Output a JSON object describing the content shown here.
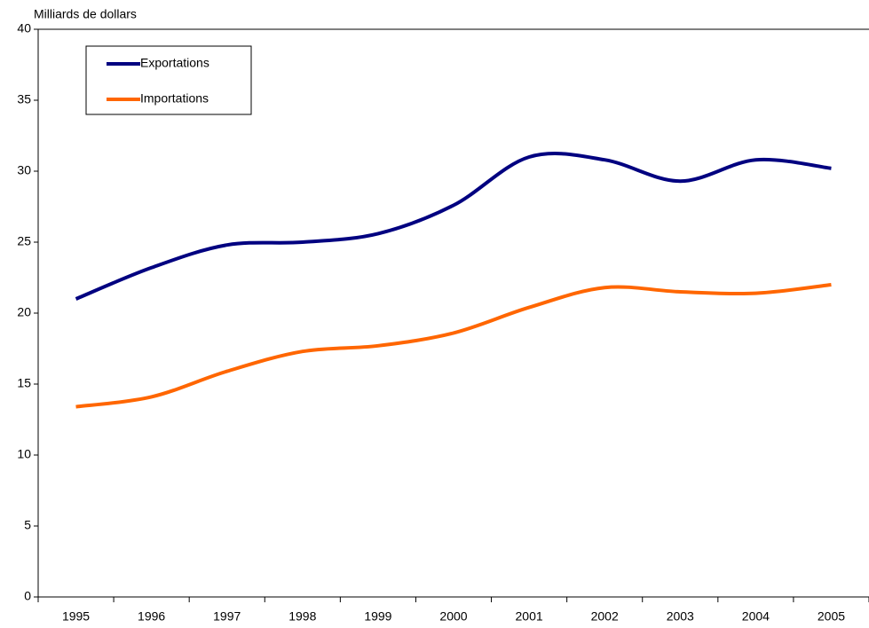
{
  "chart_data": {
    "type": "line",
    "y_label": "Milliards de dollars",
    "categories": [
      "1995",
      "1996",
      "1997",
      "1998",
      "1999",
      "2000",
      "2001",
      "2002",
      "2003",
      "2004",
      "2005"
    ],
    "series": [
      {
        "name": "Exportations",
        "color": "#000080",
        "values": [
          21.0,
          23.2,
          24.8,
          25.0,
          25.6,
          27.6,
          31.0,
          30.8,
          29.3,
          30.8,
          30.2
        ]
      },
      {
        "name": "Importations",
        "color": "#ff6600",
        "values": [
          13.4,
          14.1,
          15.9,
          17.3,
          17.7,
          18.6,
          20.4,
          21.8,
          21.5,
          21.4,
          22.0
        ]
      }
    ],
    "ylim": [
      0,
      40
    ],
    "yticks": [
      0,
      5,
      10,
      15,
      20,
      25,
      30,
      35,
      40
    ],
    "smooth": true,
    "legend": "upper left"
  }
}
